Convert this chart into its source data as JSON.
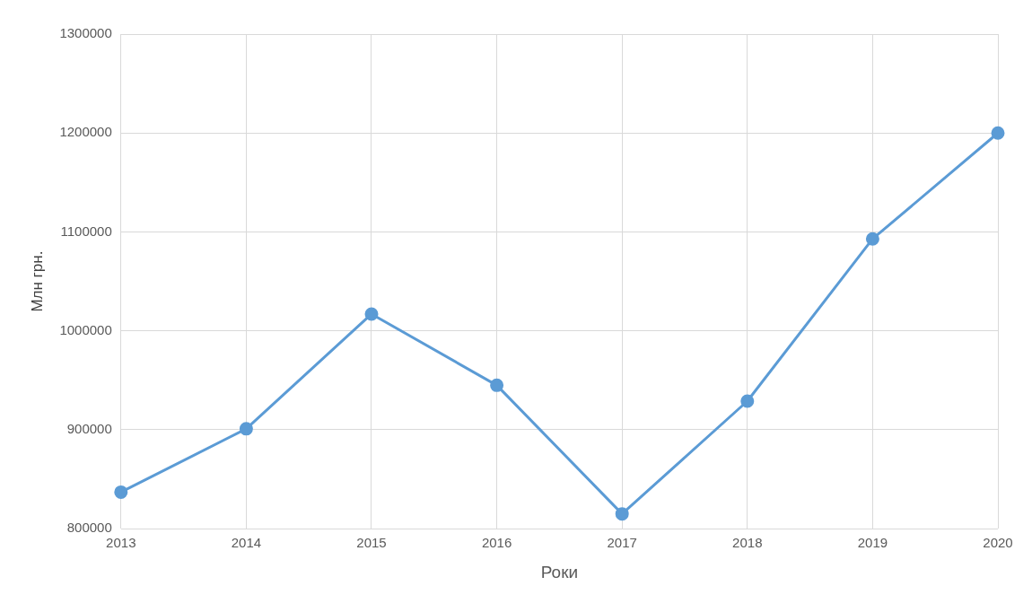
{
  "chart_data": {
    "type": "line",
    "xlabel": "Роки",
    "ylabel": "Млн грн.",
    "categories": [
      "2013",
      "2014",
      "2015",
      "2016",
      "2017",
      "2018",
      "2019",
      "2020"
    ],
    "series": [
      {
        "color": "#5b9bd5",
        "values": [
          837000,
          901000,
          1017000,
          945000,
          815000,
          929000,
          1093000,
          1200000
        ]
      }
    ],
    "ylim": [
      800000,
      1300000
    ],
    "yticks": [
      800000,
      900000,
      1000000,
      1100000,
      1200000,
      1300000
    ],
    "grid": true,
    "legend": false,
    "marker": "circle",
    "line_style": "solid"
  }
}
